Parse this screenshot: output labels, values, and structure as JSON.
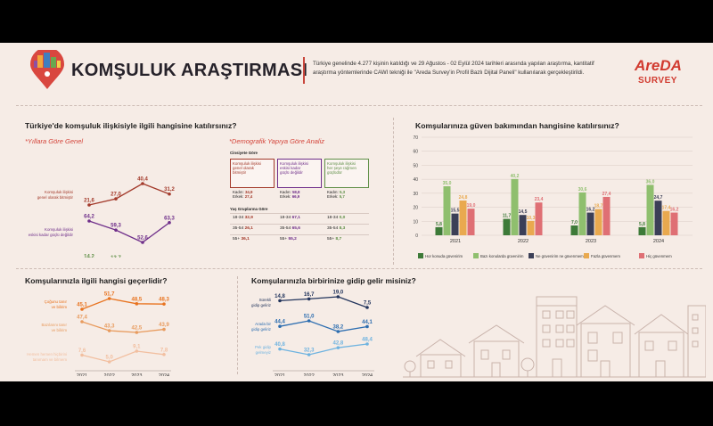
{
  "header": {
    "title": "KOMŞULUK ARAŞTIRMASI",
    "description_line1": "Türkiye genelinde 4.277 kişinin katıldığı ve 29 Ağustos - 02 Eylül 2024 tarihleri arasında yapılan araştırma, kantitatif",
    "description_line2": "araştırma yöntemlerinde CAWI tekniği ile \"Areda Survey'in Profil Bazlı Dijital Paneli\" kullanılarak gerçekleştirildi.",
    "brand_top": "AreDA",
    "brand_bottom": "SURVEY"
  },
  "colors": {
    "red": "#c0392b",
    "bg": "#f6ece6",
    "purple": "#7b3a96",
    "orange": "#e07b39",
    "blue": "#2f6fb0",
    "green": "#7aa85c"
  },
  "section1": {
    "title": "Türkiye'de komşuluk ilişkisiyle ilgili hangisine katılırsınız?",
    "sub_left": "*Yıllara Göre Genel",
    "sub_right": "*Demografik Yapıya Göre Analiz"
  },
  "demo": {
    "gender_header": "Cinsiyete Göre",
    "age_header": "Yaş Gruplarına Göre",
    "col1_title_l1": "Komşuluk ilişkisi",
    "col1_title_l2": "genel olarak",
    "col1_title_l3": "bitmiştir",
    "col2_title_l1": "Komşuluk ilişkisi",
    "col2_title_l2": "eskisi kadar",
    "col2_title_l3": "güçlü değildir",
    "col3_title_l1": "Komşuluk ilişkisi",
    "col3_title_l2": "her şeye rağmen",
    "col3_title_l3": "güçlüdür",
    "c1_kadin_l": "Kadın:",
    "c1_kadin_v": "34,9",
    "c1_erkek_l": "Erkek:",
    "c1_erkek_v": "27,4",
    "c2_kadin_l": "Kadın:",
    "c2_kadin_v": "58,8",
    "c2_erkek_l": "Erkek:",
    "c2_erkek_v": "66,9",
    "c3_kadin_l": "Kadın:",
    "c3_kadin_v": "5,3",
    "c3_erkek_l": "Erkek:",
    "c3_erkek_v": "5,7",
    "a1": "18-34",
    "a2": "35-54",
    "a3": "55+",
    "c1_a1": "32,9",
    "c1_a2": "26,1",
    "c1_a3": "36,1",
    "c2_a1": "67,1",
    "c2_a2": "65,6",
    "c2_a3": "55,2",
    "c3_a1": "0,0",
    "c3_a2": "8,3",
    "c3_a3": "8,7"
  },
  "section2": {
    "title": "Komşularınıza güven bakımından hangisine katılırsınız?"
  },
  "section3": {
    "title": "Komşularınızla ilgili hangisi geçerlidir?"
  },
  "section4": {
    "title": "Komşularınızla birbirinize gidip gelir misiniz?"
  },
  "chart_data": [
    {
      "type": "line",
      "x": [
        "2021",
        "2022",
        "2023",
        "2024"
      ],
      "series": [
        {
          "name": "Komşuluk ilişkisi genel olarak bitmiştir",
          "values": [
            21.6,
            27.0,
            40.4,
            31.2
          ],
          "labels": [
            "21,6",
            "27,0",
            "40,4",
            "31,2"
          ],
          "color": "#a33a2b"
        },
        {
          "name": "Komşuluk ilişkisi eskisi kadar güçlü değildir",
          "values": [
            64.2,
            59.3,
            52.6,
            63.3
          ],
          "labels": [
            "64,2",
            "59,3",
            "52,6",
            "63,3"
          ],
          "color": "#6f2f8a"
        },
        {
          "name": "Komşuluk ilişkisi her şeye rağmen güçlüdür",
          "values": [
            14.2,
            13.7,
            7.0,
            5.5
          ],
          "labels": [
            "14,2",
            "13,7",
            "7,0",
            "5,5"
          ],
          "color": "#5f8f47"
        }
      ],
      "series_labels": [
        [
          "Komşuluk ilişkisi",
          "genel olarak bitmiştir"
        ],
        [
          "Komşuluk ilişkisi",
          "eskisi kadar güçlü değildir"
        ],
        [
          "Komşuluk ilişkisi",
          "her şeye rağmen güçlüdür"
        ]
      ]
    },
    {
      "type": "bar",
      "categories": [
        "2021",
        "2022",
        "2023",
        "2024"
      ],
      "ylim": [
        0,
        70
      ],
      "yticks": [
        "0",
        "10",
        "20",
        "30",
        "40",
        "50",
        "60",
        "70"
      ],
      "grid": true,
      "legend": "bottom",
      "series": [
        {
          "name": "Hor konuda güvenirim",
          "values": [
            5.8,
            11.7,
            7.0,
            5.8
          ],
          "labels": [
            "5,8",
            "11,7",
            "7,0",
            "5,8"
          ],
          "color": "#3d7a38"
        },
        {
          "name": "Bazı konularda güvenirim",
          "values": [
            35.0,
            40.2,
            30.6,
            36.0
          ],
          "labels": [
            "35,0",
            "40,2",
            "30,6",
            "36,0"
          ],
          "color": "#8fbf6e"
        },
        {
          "name": "Ne güvenirim ne güvenmem",
          "values": [
            15.5,
            14.5,
            16.2,
            24.7
          ],
          "labels": [
            "15,5",
            "14,5",
            "16,2",
            "24,7"
          ],
          "color": "#3b3f57"
        },
        {
          "name": "Fazla güvenmem",
          "values": [
            24.8,
            10.3,
            18.7,
            17.4
          ],
          "labels": [
            "24,8",
            "10,3",
            "18,7",
            "17,4"
          ],
          "color": "#e9a94f"
        },
        {
          "name": "Hiç güvenmem",
          "values": [
            19.0,
            23.4,
            27.4,
            16.2
          ],
          "labels": [
            "19,0",
            "23,4",
            "27,4",
            "16,2"
          ],
          "color": "#df6f74"
        }
      ]
    },
    {
      "type": "line",
      "x": [
        "2021",
        "2022",
        "2023",
        "2024"
      ],
      "series": [
        {
          "name": "Çoğunu tanır ve bilirim",
          "values": [
            45.1,
            51.7,
            48.5,
            48.3
          ],
          "labels": [
            "45,1",
            "51,7",
            "48,5",
            "48,3"
          ],
          "color": "#e8731f"
        },
        {
          "name": "Bazılarını tanır ve bilirim",
          "values": [
            47.4,
            43.3,
            42.5,
            43.9
          ],
          "labels": [
            "47,4",
            "43,3",
            "42,5",
            "43,9"
          ],
          "color": "#e89b5e"
        },
        {
          "name": "Hemen hemen hiçbirini tanımam ve bilmem",
          "values": [
            7.6,
            5.0,
            9.1,
            7.8
          ],
          "labels": [
            "7,6",
            "5,0",
            "9,1",
            "7,8"
          ],
          "color": "#f2bfa0"
        }
      ],
      "series_labels": [
        [
          "Çoğunu tanır",
          "ve bilirim"
        ],
        [
          "Bazılarını tanır",
          "ve bilirim"
        ],
        [
          "Hemen hemen hiçbirini",
          "tanımam ve bilmem"
        ]
      ]
    },
    {
      "type": "line",
      "x": [
        "2021",
        "2022",
        "2023",
        "2024"
      ],
      "series": [
        {
          "name": "Sürekli gidip geliriz",
          "values": [
            14.8,
            16.7,
            19.0,
            7.5
          ],
          "labels": [
            "14,8",
            "16,7",
            "19,0",
            "7,5"
          ],
          "color": "#22345c"
        },
        {
          "name": "Arada bir gidip geliriz",
          "values": [
            44.4,
            51.0,
            38.2,
            44.1
          ],
          "labels": [
            "44,4",
            "51,0",
            "38,2",
            "44,1"
          ],
          "color": "#2c6db0"
        },
        {
          "name": "Pek gidip gelmeyiz",
          "values": [
            40.8,
            32.3,
            42.8,
            48.4
          ],
          "labels": [
            "40,8",
            "32,3",
            "42,8",
            "48,4"
          ],
          "color": "#6eb3e0"
        }
      ],
      "series_labels": [
        [
          "Sürekli",
          "gidip geliriz"
        ],
        [
          "Arada bir",
          "gidip geliriz"
        ],
        [
          "Pek gidip",
          "gelmeyiz"
        ]
      ]
    }
  ]
}
